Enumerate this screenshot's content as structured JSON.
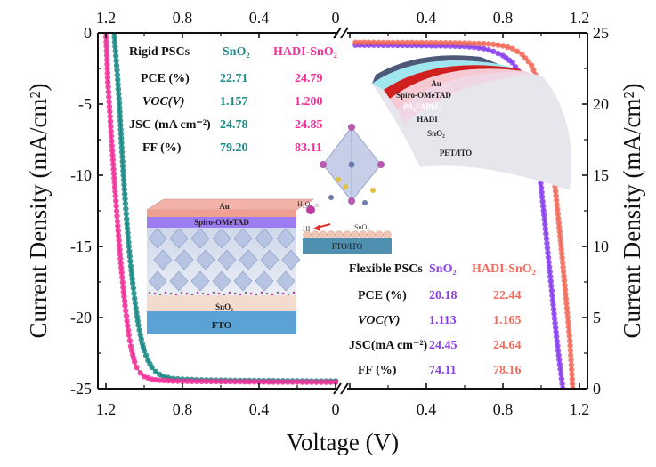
{
  "chart_data": {
    "type": "line",
    "title": "",
    "xlabel": "Voltage (V)",
    "ylabel_left": "Current Density (mA/cm²)",
    "ylabel_right": "Current Density (mA/cm²)",
    "panels": {
      "left": {
        "xlim": [
          1.2,
          0.0
        ],
        "ylim": [
          -25,
          0
        ],
        "x_ticks": [
          "1.2",
          "0.8",
          "0.4",
          "0"
        ],
        "y_ticks": [
          "0",
          "-5",
          "-10",
          "-15",
          "-20",
          "-25"
        ],
        "series": [
          {
            "name": "Rigid SnO2",
            "color": "#1b8a86",
            "points": [
              [
                1.157,
                0
              ],
              [
                1.15,
                -1.3
              ],
              [
                1.14,
                -3.0
              ],
              [
                1.13,
                -5.0
              ],
              [
                1.12,
                -7.5
              ],
              [
                1.11,
                -9.8
              ],
              [
                1.1,
                -11.8
              ],
              [
                1.09,
                -13.6
              ],
              [
                1.08,
                -15.2
              ],
              [
                1.07,
                -16.6
              ],
              [
                1.06,
                -17.8
              ],
              [
                1.05,
                -18.9
              ],
              [
                1.04,
                -19.9
              ],
              [
                1.03,
                -20.8
              ],
              [
                1.02,
                -21.5
              ],
              [
                1.01,
                -22.1
              ],
              [
                1.0,
                -22.6
              ],
              [
                0.98,
                -23.3
              ],
              [
                0.96,
                -23.8
              ],
              [
                0.94,
                -24.1
              ],
              [
                0.92,
                -24.3
              ],
              [
                0.9,
                -24.45
              ],
              [
                0.85,
                -24.6
              ],
              [
                0.8,
                -24.65
              ],
              [
                0.7,
                -24.7
              ],
              [
                0.6,
                -24.72
              ],
              [
                0.5,
                -24.74
              ],
              [
                0.4,
                -24.75
              ],
              [
                0.3,
                -24.76
              ],
              [
                0.2,
                -24.77
              ],
              [
                0.1,
                -24.78
              ],
              [
                0.0,
                -24.78
              ]
            ]
          },
          {
            "name": "Rigid HADI-SnO2",
            "color": "#f2309a",
            "points": [
              [
                1.2,
                0
              ],
              [
                1.195,
                -1.6
              ],
              [
                1.19,
                -3.5
              ],
              [
                1.18,
                -5.6
              ],
              [
                1.17,
                -7.7
              ],
              [
                1.16,
                -9.7
              ],
              [
                1.15,
                -11.6
              ],
              [
                1.14,
                -13.4
              ],
              [
                1.13,
                -15.1
              ],
              [
                1.12,
                -16.7
              ],
              [
                1.11,
                -18.1
              ],
              [
                1.1,
                -19.4
              ],
              [
                1.09,
                -20.5
              ],
              [
                1.08,
                -21.5
              ],
              [
                1.07,
                -22.3
              ],
              [
                1.06,
                -22.9
              ],
              [
                1.05,
                -23.4
              ],
              [
                1.04,
                -23.8
              ],
              [
                1.02,
                -24.2
              ],
              [
                1.0,
                -24.45
              ],
              [
                0.96,
                -24.65
              ],
              [
                0.92,
                -24.72
              ],
              [
                0.85,
                -24.77
              ],
              [
                0.8,
                -24.79
              ],
              [
                0.7,
                -24.8
              ],
              [
                0.6,
                -24.81
              ],
              [
                0.5,
                -24.82
              ],
              [
                0.4,
                -24.83
              ],
              [
                0.3,
                -24.84
              ],
              [
                0.2,
                -24.84
              ],
              [
                0.1,
                -24.85
              ],
              [
                0.0,
                -24.85
              ]
            ]
          }
        ]
      },
      "right": {
        "xlim": [
          0.0,
          1.2
        ],
        "ylim": [
          0,
          25
        ],
        "x_ticks": [
          "0",
          "0.4",
          "0.8",
          "1.2"
        ],
        "y_ticks": [
          "25",
          "20",
          "15",
          "10",
          "5",
          "0"
        ],
        "series": [
          {
            "name": "Flexible SnO2",
            "color": "#8a3ff0",
            "points": [
              [
                0.03,
                24.45
              ],
              [
                0.1,
                24.45
              ],
              [
                0.2,
                24.44
              ],
              [
                0.3,
                24.43
              ],
              [
                0.4,
                24.42
              ],
              [
                0.5,
                24.4
              ],
              [
                0.6,
                24.36
              ],
              [
                0.65,
                24.3
              ],
              [
                0.7,
                24.2
              ],
              [
                0.75,
                24.0
              ],
              [
                0.8,
                23.7
              ],
              [
                0.85,
                23.2
              ],
              [
                0.88,
                22.6
              ],
              [
                0.91,
                21.7
              ],
              [
                0.94,
                20.3
              ],
              [
                0.96,
                18.8
              ],
              [
                0.98,
                16.8
              ],
              [
                1.0,
                14.3
              ],
              [
                1.02,
                11.7
              ],
              [
                1.04,
                9.0
              ],
              [
                1.06,
                6.3
              ],
              [
                1.08,
                3.7
              ],
              [
                1.1,
                1.4
              ],
              [
                1.113,
                0
              ]
            ]
          },
          {
            "name": "Flexible HADI-SnO2",
            "color": "#f26b5b",
            "points": [
              [
                0.03,
                24.64
              ],
              [
                0.1,
                24.64
              ],
              [
                0.2,
                24.63
              ],
              [
                0.3,
                24.63
              ],
              [
                0.4,
                24.62
              ],
              [
                0.5,
                24.61
              ],
              [
                0.6,
                24.59
              ],
              [
                0.7,
                24.55
              ],
              [
                0.75,
                24.5
              ],
              [
                0.8,
                24.4
              ],
              [
                0.85,
                24.2
              ],
              [
                0.9,
                23.8
              ],
              [
                0.95,
                23.0
              ],
              [
                0.98,
                22.0
              ],
              [
                1.01,
                20.4
              ],
              [
                1.03,
                18.9
              ],
              [
                1.05,
                17.0
              ],
              [
                1.07,
                14.7
              ],
              [
                1.09,
                12.1
              ],
              [
                1.11,
                9.3
              ],
              [
                1.13,
                6.4
              ],
              [
                1.15,
                3.4
              ],
              [
                1.165,
                0
              ]
            ]
          }
        ]
      }
    }
  },
  "rigid_table": {
    "title": "Rigid PSCs",
    "col_a": "SnO₂",
    "col_b": "HADI-SnO₂",
    "rows": [
      {
        "label": "PCE (%)",
        "a": "22.71",
        "b": "24.79"
      },
      {
        "label": "VOC(V)",
        "a": "1.157",
        "b": "1.200"
      },
      {
        "label": "JSC (mA cm⁻²)",
        "a": "24.78",
        "b": "24.85"
      },
      {
        "label": "FF (%)",
        "a": "79.20",
        "b": "83.11"
      }
    ]
  },
  "flexible_table": {
    "title": "Flexible PSCs",
    "col_a": "SnO₂",
    "col_b": "HADI-SnO₂",
    "rows": [
      {
        "label": "PCE (%)",
        "a": "20.18",
        "b": "22.44"
      },
      {
        "label": "VOC(V)",
        "a": "1.113",
        "b": "1.165"
      },
      {
        "label": "JSC(mA cm⁻²)",
        "a": "24.45",
        "b": "24.64"
      },
      {
        "label": "FF (%)",
        "a": "74.11",
        "b": "78.16"
      }
    ]
  },
  "rigid_stack": {
    "au": "Au",
    "htl": "Spiro-OMeTAD",
    "etl": "SnO₂",
    "sub": "FTO"
  },
  "flex_stack": {
    "au": "Au",
    "htl": "Spiro-OMeTAD",
    "pvk": "PA₂FAPbI₃",
    "hadi": "HADI",
    "etl": "SnO₂",
    "sub": "PET/ITO"
  },
  "molecule": {
    "water": "H₂O",
    "hi": "HI",
    "etl": "SnO₂",
    "sub": "FTO/ITO"
  },
  "colors": {
    "teal": "#1b8a86",
    "pink": "#f2309a",
    "purple": "#8a3ff0",
    "salmon": "#f26b5b"
  }
}
